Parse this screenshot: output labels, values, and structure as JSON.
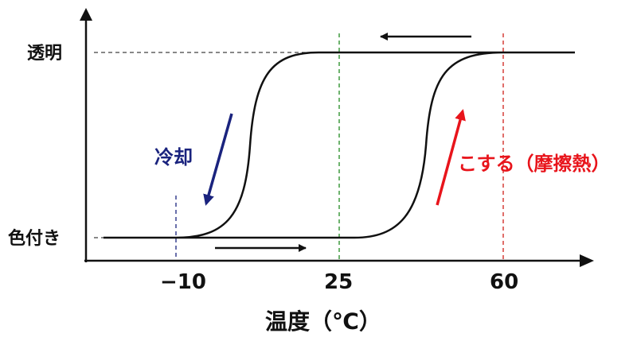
{
  "y_axis": {
    "top_label": "透明",
    "bottom_label": "色付き"
  },
  "x_axis": {
    "title": "温度（℃）",
    "ticks": [
      "−10",
      "25",
      "60"
    ]
  },
  "annotations": {
    "cooling": {
      "text": "冷却",
      "color": "#1a237e"
    },
    "heating": {
      "text": "こする（摩擦熱）",
      "color": "#e8141b"
    }
  },
  "markers": {
    "minus10_color": "#1a237e",
    "t25_color": "#1f8a1f",
    "t60_color": "#d0201a"
  }
}
